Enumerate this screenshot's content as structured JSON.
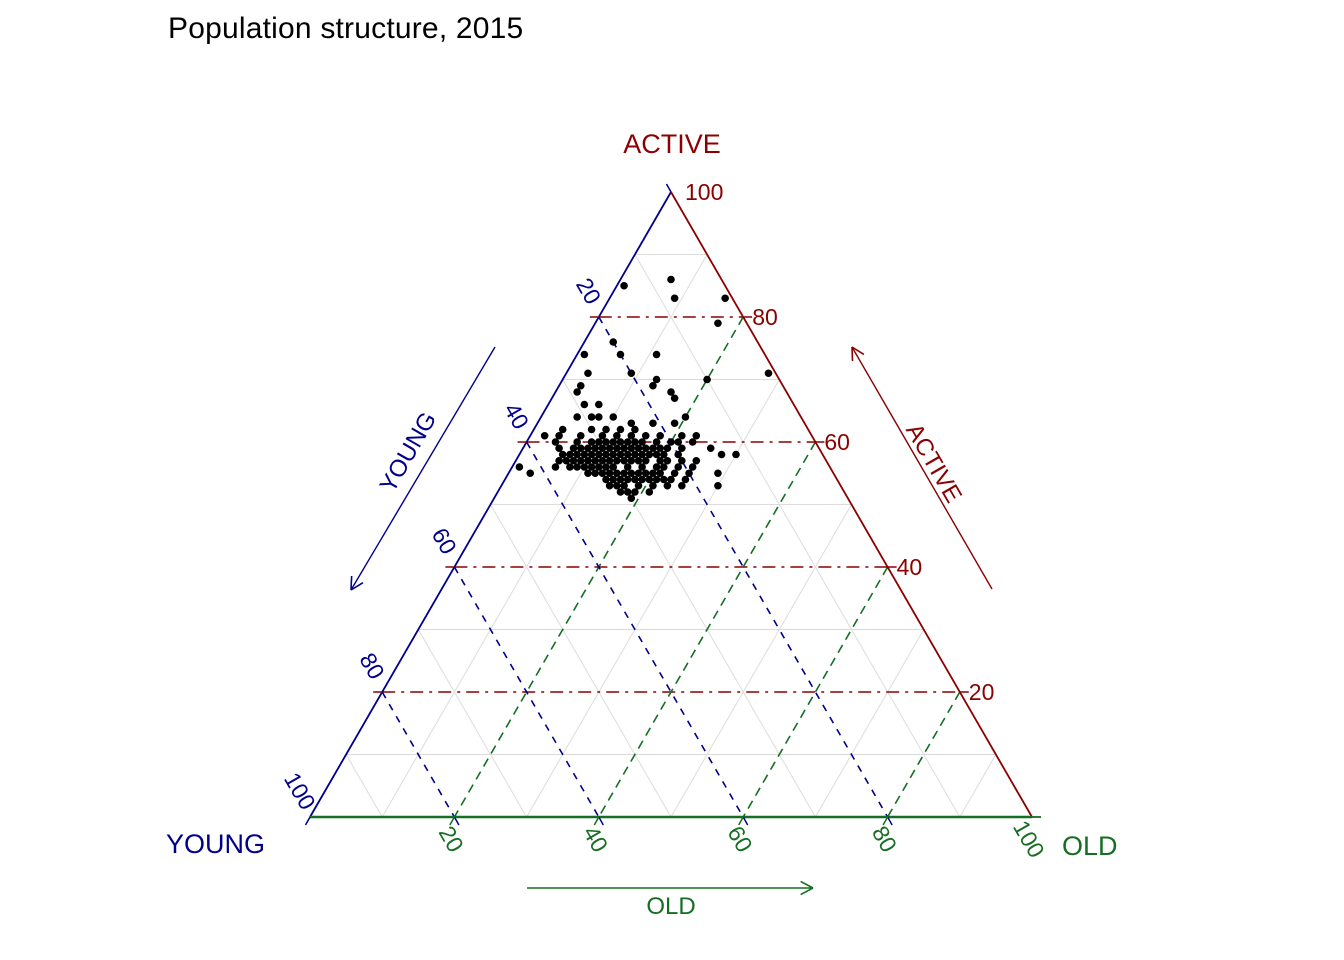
{
  "title": "Population structure, 2015",
  "colors": {
    "young": "#00008B",
    "active": "#8B0000",
    "old": "#156e23",
    "minor_grid": "#DCDCDC",
    "points": "#000000",
    "background": "#FFFFFF"
  },
  "chart_data": {
    "type": "scatter",
    "variant": "ternary",
    "title": "Population structure, 2015",
    "grid": {
      "major_interval": 20,
      "minor_interval": 10,
      "major_style": "dash-dot/dashed",
      "minor_style": "solid-light"
    },
    "axes": {
      "top": {
        "label": "ACTIVE",
        "ticks": [
          100,
          80,
          60,
          40,
          20
        ],
        "color": "#8B0000"
      },
      "left": {
        "label": "YOUNG",
        "ticks": [
          20,
          40,
          60,
          80,
          100
        ],
        "color": "#00008B"
      },
      "bottom": {
        "label": "OLD",
        "ticks": [
          20,
          40,
          60,
          80,
          100
        ],
        "color": "#156e23"
      }
    },
    "arrows": {
      "young": {
        "label": "YOUNG",
        "direction": "down-left"
      },
      "active": {
        "label": "ACTIVE",
        "direction": "up-right"
      },
      "old": {
        "label": "OLD",
        "direction": "right"
      }
    },
    "points_unit": "percent [young, active, old]",
    "points": [
      [
        7,
        86,
        7
      ],
      [
        8,
        83,
        9
      ],
      [
        14,
        85,
        1
      ],
      [
        1,
        83,
        16
      ],
      [
        4,
        79,
        17
      ],
      [
        25,
        74,
        1
      ],
      [
        20,
        76,
        4
      ],
      [
        20,
        74,
        6
      ],
      [
        20,
        71,
        9
      ],
      [
        15,
        74,
        11
      ],
      [
        17,
        70,
        13
      ],
      [
        10,
        70,
        20
      ],
      [
        1,
        71,
        28
      ],
      [
        26,
        71,
        3
      ],
      [
        18,
        69,
        13
      ],
      [
        28,
        69,
        3
      ],
      [
        29,
        68,
        3
      ],
      [
        16,
        68,
        16
      ],
      [
        16,
        67,
        17
      ],
      [
        29,
        66,
        5
      ],
      [
        27,
        66,
        7
      ],
      [
        31,
        64,
        5
      ],
      [
        29,
        64,
        7
      ],
      [
        28,
        64,
        8
      ],
      [
        26,
        64,
        10
      ],
      [
        16,
        64,
        20
      ],
      [
        24,
        63,
        13
      ],
      [
        21,
        63,
        16
      ],
      [
        18,
        63,
        19
      ],
      [
        34,
        62,
        4
      ],
      [
        30,
        62,
        8
      ],
      [
        28,
        62,
        10
      ],
      [
        26,
        62,
        12
      ],
      [
        24,
        62,
        14
      ],
      [
        37,
        61,
        2
      ],
      [
        35,
        61,
        4
      ],
      [
        32,
        61,
        7
      ],
      [
        29,
        61,
        10
      ],
      [
        27,
        61,
        12
      ],
      [
        25,
        61,
        14
      ],
      [
        23,
        61,
        16
      ],
      [
        21,
        61,
        18
      ],
      [
        18,
        61,
        21
      ],
      [
        16,
        61,
        23
      ],
      [
        36,
        60,
        4
      ],
      [
        33,
        60,
        7
      ],
      [
        31,
        60,
        9
      ],
      [
        30,
        60,
        10
      ],
      [
        29,
        60,
        11
      ],
      [
        28,
        60,
        12
      ],
      [
        27,
        60,
        13
      ],
      [
        26,
        60,
        14
      ],
      [
        25,
        60,
        15
      ],
      [
        24,
        60,
        16
      ],
      [
        22,
        60,
        18
      ],
      [
        20,
        60,
        20
      ],
      [
        19,
        60,
        21
      ],
      [
        17,
        60,
        23
      ],
      [
        36,
        59,
        5
      ],
      [
        34,
        59,
        7
      ],
      [
        33,
        59,
        8
      ],
      [
        32,
        59,
        9
      ],
      [
        31,
        59,
        10
      ],
      [
        30,
        59,
        11
      ],
      [
        29,
        59,
        12
      ],
      [
        28,
        59,
        13
      ],
      [
        27,
        59,
        14
      ],
      [
        26,
        59,
        15
      ],
      [
        25,
        59,
        16
      ],
      [
        24,
        59,
        17
      ],
      [
        23,
        59,
        18
      ],
      [
        22,
        59,
        19
      ],
      [
        21,
        59,
        20
      ],
      [
        19,
        59,
        22
      ],
      [
        15,
        59,
        26
      ],
      [
        36,
        58,
        6
      ],
      [
        35,
        58,
        7
      ],
      [
        34,
        58,
        8
      ],
      [
        33,
        58,
        9
      ],
      [
        32,
        58,
        10
      ],
      [
        31,
        58,
        11
      ],
      [
        30,
        58,
        12
      ],
      [
        29,
        58,
        13
      ],
      [
        28,
        58,
        14
      ],
      [
        27,
        58,
        15
      ],
      [
        26,
        58,
        16
      ],
      [
        25,
        58,
        17
      ],
      [
        24,
        58,
        18
      ],
      [
        23,
        58,
        19
      ],
      [
        22,
        58,
        20
      ],
      [
        20,
        58,
        22
      ],
      [
        14,
        58,
        28
      ],
      [
        12,
        58,
        30
      ],
      [
        37,
        57,
        6
      ],
      [
        36,
        57,
        7
      ],
      [
        35,
        57,
        8
      ],
      [
        34,
        57,
        9
      ],
      [
        33,
        57,
        10
      ],
      [
        32,
        57,
        11
      ],
      [
        31,
        57,
        12
      ],
      [
        30,
        57,
        13
      ],
      [
        29,
        57,
        14
      ],
      [
        28,
        57,
        15
      ],
      [
        27,
        57,
        16
      ],
      [
        26,
        57,
        17
      ],
      [
        25,
        57,
        18
      ],
      [
        23,
        57,
        20
      ],
      [
        22,
        57,
        21
      ],
      [
        20,
        57,
        23
      ],
      [
        18,
        57,
        25
      ],
      [
        43,
        56,
        1
      ],
      [
        38,
        56,
        6
      ],
      [
        36,
        56,
        8
      ],
      [
        35,
        56,
        9
      ],
      [
        34,
        56,
        10
      ],
      [
        33,
        56,
        11
      ],
      [
        32,
        56,
        12
      ],
      [
        31,
        56,
        13
      ],
      [
        30,
        56,
        14
      ],
      [
        28,
        56,
        16
      ],
      [
        26,
        56,
        18
      ],
      [
        24,
        56,
        20
      ],
      [
        23,
        56,
        21
      ],
      [
        21,
        56,
        23
      ],
      [
        19,
        56,
        25
      ],
      [
        42,
        55,
        3
      ],
      [
        34,
        55,
        11
      ],
      [
        33,
        55,
        12
      ],
      [
        32,
        55,
        13
      ],
      [
        31,
        55,
        14
      ],
      [
        30,
        55,
        15
      ],
      [
        29,
        55,
        16
      ],
      [
        28,
        55,
        17
      ],
      [
        27,
        55,
        18
      ],
      [
        26,
        55,
        19
      ],
      [
        25,
        55,
        20
      ],
      [
        24,
        55,
        21
      ],
      [
        22,
        55,
        23
      ],
      [
        20,
        55,
        25
      ],
      [
        16,
        55,
        29
      ],
      [
        32,
        54,
        14
      ],
      [
        31,
        54,
        15
      ],
      [
        30,
        54,
        16
      ],
      [
        29,
        54,
        17
      ],
      [
        28,
        54,
        18
      ],
      [
        27,
        54,
        19
      ],
      [
        26,
        54,
        20
      ],
      [
        25,
        54,
        21
      ],
      [
        24,
        54,
        22
      ],
      [
        23,
        54,
        23
      ],
      [
        21,
        54,
        25
      ],
      [
        32,
        53,
        15
      ],
      [
        31,
        53,
        16
      ],
      [
        30,
        53,
        17
      ],
      [
        28,
        53,
        19
      ],
      [
        26,
        53,
        21
      ],
      [
        24,
        53,
        23
      ],
      [
        22,
        53,
        25
      ],
      [
        17,
        53,
        30
      ],
      [
        31,
        52,
        17
      ],
      [
        30,
        52,
        18
      ],
      [
        29,
        52,
        19
      ],
      [
        27,
        52,
        21
      ],
      [
        30,
        51,
        19
      ]
    ]
  }
}
